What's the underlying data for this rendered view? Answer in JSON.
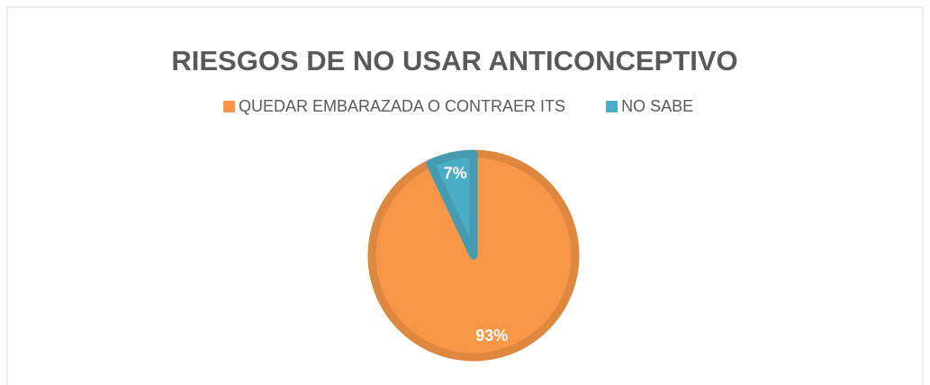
{
  "chart_data": {
    "type": "pie",
    "title": "RIESGOS DE NO USAR ANTICONCEPTIVO",
    "categories": [
      "QUEDAR EMBARAZADA O CONTRAER ITS",
      "NO SABE"
    ],
    "values": [
      93,
      7
    ],
    "value_labels": [
      "93%",
      "7%"
    ],
    "colors": [
      "#f79646",
      "#4bacc6"
    ],
    "legend": "top"
  }
}
